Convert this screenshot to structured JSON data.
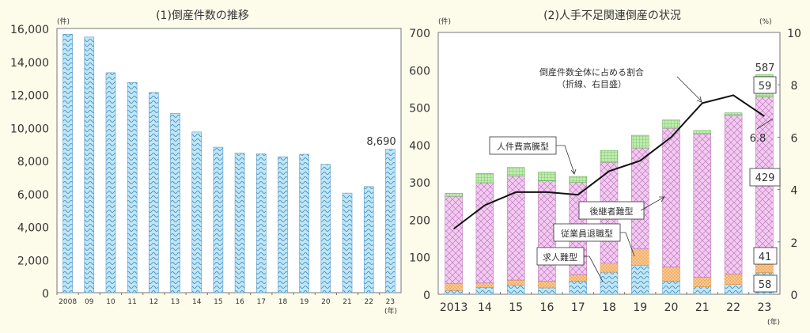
{
  "chart_data": [
    {
      "type": "bar",
      "title": "(1)倒産件数の推移",
      "xlabel": "(年)",
      "ylabel": "(件)",
      "ylim": [
        0,
        16000
      ],
      "yticks": [
        "0",
        "2,000",
        "4,000",
        "6,000",
        "8,000",
        "10,000",
        "12,000",
        "14,000",
        "16,000"
      ],
      "categories": [
        "2008",
        "09",
        "10",
        "11",
        "12",
        "13",
        "14",
        "15",
        "16",
        "17",
        "18",
        "19",
        "20",
        "21",
        "22",
        "23"
      ],
      "values": [
        15646,
        15480,
        13321,
        12734,
        12124,
        10855,
        9731,
        8812,
        8446,
        8405,
        8235,
        8383,
        7773,
        6030,
        6428,
        8690
      ],
      "annotations": [
        {
          "category": "23",
          "label": "8,690"
        }
      ],
      "bar_color": "#bfe6f7",
      "grid": false
    },
    {
      "type": "bar",
      "stacked": true,
      "title": "(2)人手不足関連倒産の状況",
      "xlabel": "(年)",
      "ylabel": "(件)",
      "ylabel_right": "(%)",
      "ylim": [
        0,
        700
      ],
      "ylim_right": [
        0,
        10
      ],
      "yticks": [
        "0",
        "100",
        "200",
        "300",
        "400",
        "500",
        "600",
        "700"
      ],
      "yticks_right": [
        "0",
        "2",
        "4",
        "6",
        "8",
        "10"
      ],
      "categories": [
        "2013",
        "14",
        "15",
        "16",
        "17",
        "18",
        "19",
        "20",
        "21",
        "22",
        "23"
      ],
      "series": [
        {
          "name": "求人難型",
          "color": "#bfe6f7",
          "values": [
            10,
            18,
            24,
            17,
            35,
            59,
            77,
            35,
            20,
            26,
            58
          ]
        },
        {
          "name": "従業員退職型",
          "color": "#fbc990",
          "values": [
            18,
            12,
            14,
            18,
            17,
            24,
            44,
            38,
            26,
            28,
            41
          ]
        },
        {
          "name": "後継者難型",
          "color": "#f4c9f2",
          "values": [
            234,
            268,
            278,
            268,
            247,
            270,
            270,
            371,
            383,
            425,
            429
          ]
        },
        {
          "name": "人件費高騰型",
          "color": "#bfecaf",
          "values": [
            8,
            25,
            23,
            24,
            16,
            31,
            34,
            22,
            9,
            6,
            59
          ]
        }
      ],
      "totals": [
        270,
        323,
        339,
        327,
        315,
        384,
        425,
        466,
        438,
        485,
        587
      ],
      "line": {
        "name": "倒産件数全体に占める割合（折線、右目盛）",
        "axis": "right",
        "values": [
          2.5,
          3.4,
          3.9,
          3.9,
          3.8,
          4.7,
          5.1,
          6.0,
          7.3,
          7.6,
          6.8
        ]
      },
      "annotations": [
        {
          "text": "倒産件数全体に占める割合",
          "sub": "（折線、右目盛）"
        },
        {
          "text": "人件費高騰型"
        },
        {
          "text": "後継者難型"
        },
        {
          "text": "従業員退職型"
        },
        {
          "text": "求人難型"
        },
        {
          "category": "23",
          "label": "587"
        },
        {
          "category": "23",
          "label": "59"
        },
        {
          "category": "23",
          "label": "429"
        },
        {
          "category": "23",
          "label": "41"
        },
        {
          "category": "23",
          "label": "58"
        },
        {
          "category": "23",
          "label": "6.8"
        }
      ]
    }
  ],
  "left": {
    "title": "(1)倒産件数の推移",
    "unit": "(件)",
    "year_unit": "(年)",
    "last_label": "8,690"
  },
  "right": {
    "title": "(2)人手不足関連倒産の状況",
    "unit_left": "(件)",
    "unit_right": "(%)",
    "year_unit": "(年)",
    "line_label": "倒産件数全体に占める割合",
    "line_sub": "（折線、右目盛）",
    "label_wage": "人件費高騰型",
    "label_successor": "後継者難型",
    "label_retire": "従業員退職型",
    "label_recruit": "求人難型",
    "val_total": "587",
    "val_wage": "59",
    "val_successor": "429",
    "val_retire": "41",
    "val_recruit": "58",
    "val_line": "6.8"
  }
}
